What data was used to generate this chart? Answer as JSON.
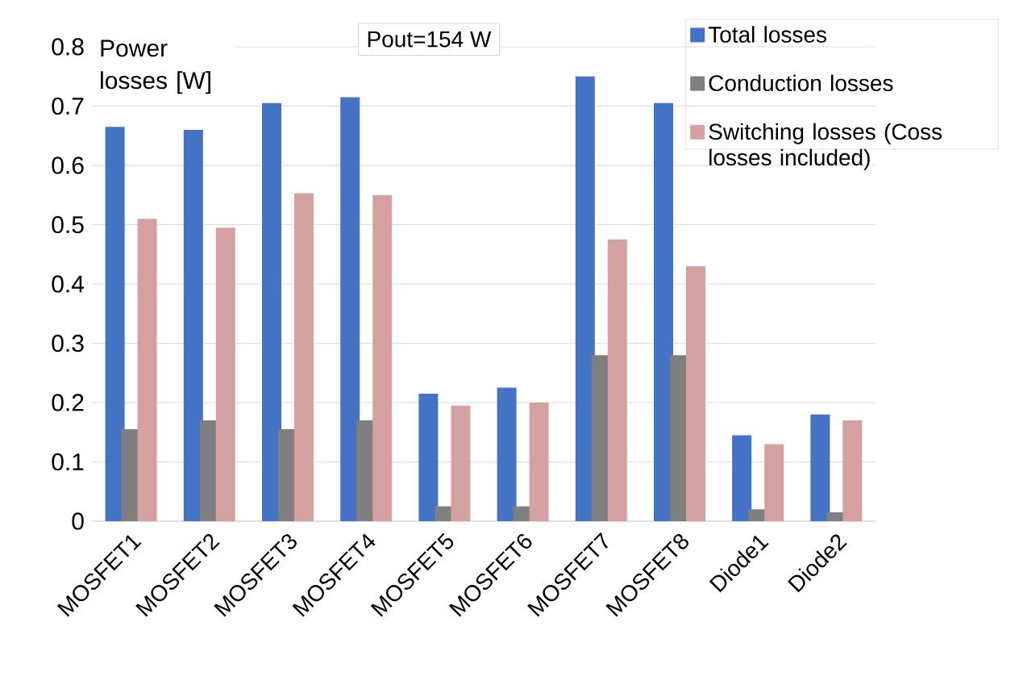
{
  "chart_data": {
    "type": "bar",
    "ylabel": "Power losses [W]",
    "annotations": [
      "Pout=154 W"
    ],
    "categories": [
      "MOSFET1",
      "MOSFET2",
      "MOSFET3",
      "MOSFET4",
      "MOSFET5",
      "MOSFET6",
      "MOSFET7",
      "MOSFET8",
      "Diode1",
      "Diode2"
    ],
    "series": [
      {
        "name": "Total losses",
        "color": "#4472c4",
        "values": [
          0.665,
          0.66,
          0.705,
          0.715,
          0.215,
          0.225,
          0.75,
          0.705,
          0.145,
          0.18
        ]
      },
      {
        "name": "Conduction losses",
        "color": "#7f7f7f",
        "values": [
          0.155,
          0.17,
          0.155,
          0.17,
          0.025,
          0.025,
          0.28,
          0.28,
          0.02,
          0.015
        ]
      },
      {
        "name": "Switching losses (Coss losses included)",
        "color": "#d4a0a0",
        "values": [
          0.51,
          0.495,
          0.553,
          0.55,
          0.195,
          0.2,
          0.475,
          0.43,
          0.13,
          0.17
        ]
      }
    ],
    "ylim": [
      0,
      0.8
    ],
    "yticks": [
      0,
      0.1,
      0.2,
      0.3,
      0.4,
      0.5,
      0.6,
      0.7,
      0.8
    ],
    "grid": "y",
    "legend": "top right"
  }
}
